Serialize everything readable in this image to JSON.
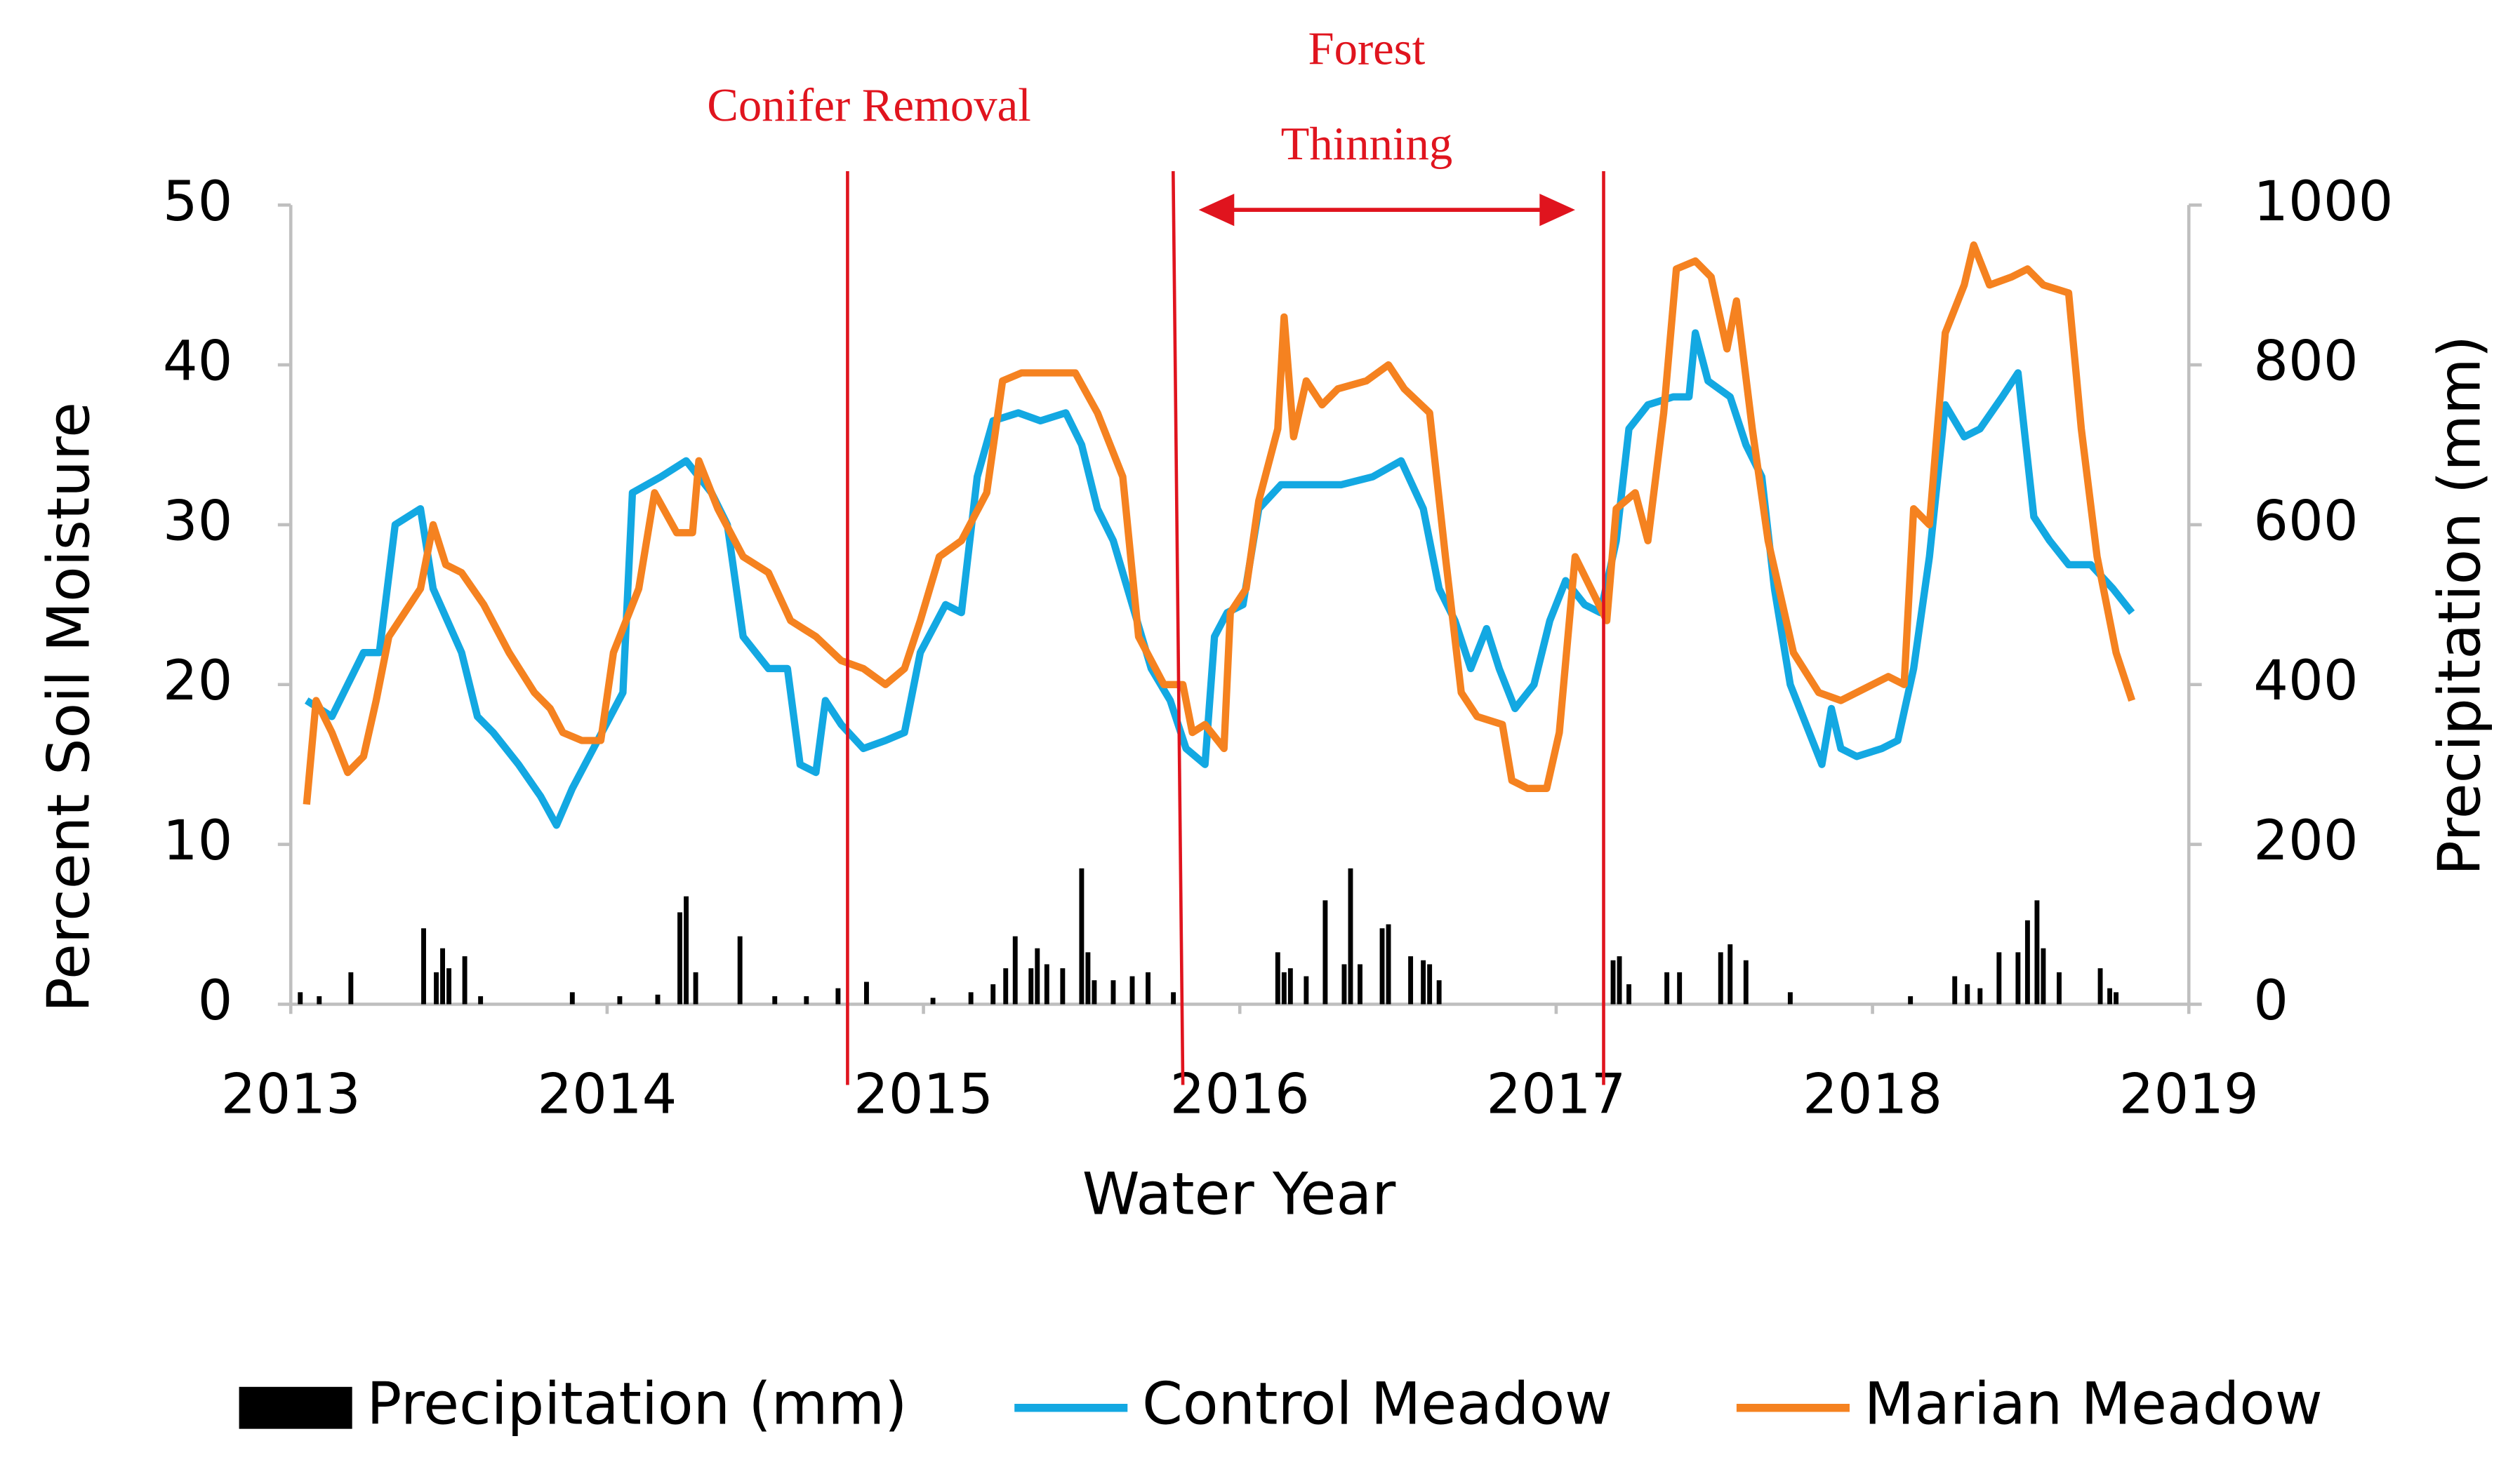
{
  "chart_data": {
    "type": "line",
    "x_label": "Water Year",
    "y_label": "Percent Soil Moisture",
    "y2_label": "Precipitation (mm)",
    "xlim": [
      2013,
      2019
    ],
    "xticks": [
      2013,
      2014,
      2015,
      2016,
      2017,
      2018,
      2019
    ],
    "ylim": [
      0,
      50
    ],
    "yticks": [
      0,
      10,
      20,
      30,
      40,
      50
    ],
    "y2lim": [
      0,
      1000
    ],
    "y2ticks": [
      0,
      200,
      400,
      600,
      800,
      1000
    ],
    "legend": "bottom",
    "annotations": [
      {
        "text": "Conifer Removal"
      },
      {
        "lines": [
          "Forest",
          "Thinning"
        ]
      }
    ],
    "vlines": [
      2014.76,
      2015.82,
      2017.15
    ],
    "arrow": [
      2015.87,
      2017.06
    ],
    "series": [
      {
        "name": "Precipitation (mm)",
        "type": "bar",
        "axis": "y2",
        "color": "#000000",
        "x": [
          2013.03,
          2013.09,
          2013.19,
          2013.42,
          2013.46,
          2013.48,
          2013.5,
          2013.55,
          2013.6,
          2013.89,
          2014.04,
          2014.16,
          2014.23,
          2014.25,
          2014.28,
          2014.42,
          2014.53,
          2014.63,
          2014.73,
          2014.82,
          2015.03,
          2015.15,
          2015.22,
          2015.26,
          2015.29,
          2015.34,
          2015.36,
          2015.39,
          2015.44,
          2015.5,
          2015.52,
          2015.54,
          2015.6,
          2015.66,
          2015.71,
          2015.79,
          2016.12,
          2016.14,
          2016.16,
          2016.21,
          2016.27,
          2016.33,
          2016.35,
          2016.38,
          2016.45,
          2016.47,
          2016.54,
          2016.58,
          2016.6,
          2016.63,
          2017.18,
          2017.2,
          2017.23,
          2017.35,
          2017.39,
          2017.52,
          2017.55,
          2017.6,
          2017.74,
          2018.12,
          2018.26,
          2018.3,
          2018.34,
          2018.4,
          2018.46,
          2018.49,
          2018.52,
          2018.54,
          2018.59,
          2018.72,
          2018.75,
          2018.77
        ],
        "values": [
          15,
          10,
          40,
          95,
          40,
          70,
          45,
          60,
          10,
          15,
          10,
          12,
          115,
          135,
          40,
          85,
          10,
          10,
          20,
          28,
          8,
          15,
          25,
          45,
          85,
          45,
          70,
          50,
          45,
          170,
          65,
          30,
          30,
          35,
          40,
          15,
          65,
          40,
          45,
          35,
          130,
          50,
          170,
          50,
          95,
          100,
          60,
          55,
          50,
          30,
          55,
          60,
          25,
          40,
          40,
          65,
          75,
          55,
          15,
          10,
          35,
          25,
          20,
          65,
          65,
          105,
          130,
          70,
          40,
          45,
          20,
          15
        ]
      },
      {
        "name": "Control Meadow",
        "color": "#13a8e2",
        "x": [
          2013.05,
          2013.13,
          2013.18,
          2013.23,
          2013.28,
          2013.33,
          2013.41,
          2013.45,
          2013.54,
          2013.59,
          2013.64,
          2013.72,
          2013.79,
          2013.84,
          2013.89,
          2013.97,
          2014.05,
          2014.08,
          2014.17,
          2014.25,
          2014.33,
          2014.38,
          2014.43,
          2014.51,
          2014.57,
          2014.61,
          2014.66,
          2014.69,
          2014.74,
          2014.81,
          2014.88,
          2014.94,
          2014.99,
          2015.07,
          2015.12,
          2015.17,
          2015.22,
          2015.3,
          2015.37,
          2015.45,
          2015.5,
          2015.55,
          2015.6,
          2015.66,
          2015.72,
          2015.78,
          2015.83,
          2015.89,
          2015.92,
          2015.96,
          2016.01,
          2016.06,
          2016.13,
          2016.22,
          2016.32,
          2016.42,
          2016.51,
          2016.58,
          2016.63,
          2016.68,
          2016.73,
          2016.78,
          2016.82,
          2016.87,
          2016.93,
          2016.98,
          2017.03,
          2017.09,
          2017.14,
          2017.19,
          2017.23,
          2017.29,
          2017.37,
          2017.42,
          2017.44,
          2017.48,
          2017.55,
          2017.6,
          2017.65,
          2017.69,
          2017.74,
          2017.8,
          2017.84,
          2017.87,
          2017.9,
          2017.95,
          2018.03,
          2018.08,
          2018.13,
          2018.18,
          2018.23,
          2018.29,
          2018.34,
          2018.41,
          2018.46,
          2018.51,
          2018.56,
          2018.62,
          2018.69,
          2018.76,
          2018.82
        ],
        "values": [
          19,
          18,
          20,
          22,
          22,
          30,
          31,
          26,
          22,
          18,
          17,
          15,
          13,
          11.2,
          13.5,
          16.5,
          19.5,
          32,
          33,
          34,
          32,
          30,
          23,
          21,
          21,
          15,
          14.5,
          19,
          17.5,
          16,
          16.5,
          17,
          22,
          25,
          24.5,
          33,
          36.5,
          37,
          36.5,
          37,
          35,
          31,
          29,
          25,
          21,
          19,
          16,
          15,
          23,
          24.5,
          25,
          31,
          32.5,
          32.5,
          32.5,
          33,
          34,
          31,
          26,
          24,
          21,
          23.5,
          21,
          18.5,
          20,
          24,
          26.5,
          25,
          24.5,
          29,
          36,
          37.5,
          38,
          38,
          42,
          39,
          38,
          35,
          33,
          26,
          20,
          17,
          15,
          18.5,
          16,
          15.5,
          16,
          16.5,
          21,
          28,
          37.5,
          35.5,
          36,
          38,
          39.5,
          30.5,
          29,
          27.5,
          27.5,
          26,
          24.5
        ]
      },
      {
        "name": "Marian Meadow",
        "color": "#f58220",
        "x": [
          2013.05,
          2013.08,
          2013.13,
          2013.18,
          2013.23,
          2013.27,
          2013.31,
          2013.36,
          2013.41,
          2013.45,
          2013.49,
          2013.54,
          2013.61,
          2013.69,
          2013.77,
          2013.82,
          2013.86,
          2013.92,
          2013.98,
          2014.02,
          2014.1,
          2014.15,
          2014.22,
          2014.27,
          2014.29,
          2014.35,
          2014.43,
          2014.51,
          2014.58,
          2014.66,
          2014.74,
          2014.81,
          2014.88,
          2014.94,
          2014.99,
          2015.05,
          2015.12,
          2015.2,
          2015.25,
          2015.31,
          2015.4,
          2015.48,
          2015.55,
          2015.63,
          2015.68,
          2015.76,
          2015.82,
          2015.85,
          2015.89,
          2015.95,
          2015.97,
          2016.02,
          2016.06,
          2016.12,
          2016.14,
          2016.17,
          2016.21,
          2016.26,
          2016.31,
          2016.4,
          2016.47,
          2016.52,
          2016.6,
          2016.65,
          2016.7,
          2016.75,
          2016.83,
          2016.86,
          2016.91,
          2016.97,
          2017.01,
          2017.06,
          2017.11,
          2017.16,
          2017.19,
          2017.25,
          2017.29,
          2017.34,
          2017.38,
          2017.44,
          2017.49,
          2017.54,
          2017.57,
          2017.62,
          2017.67,
          2017.75,
          2017.83,
          2017.9,
          2018.0,
          2018.05,
          2018.1,
          2018.13,
          2018.18,
          2018.23,
          2018.29,
          2018.32,
          2018.37,
          2018.44,
          2018.49,
          2018.54,
          2018.62,
          2018.66,
          2018.71,
          2018.77,
          2018.82
        ],
        "values": [
          12.5,
          19,
          17,
          14.5,
          15.5,
          19,
          23,
          24.5,
          26,
          30,
          27.5,
          27,
          25,
          22,
          19.5,
          18.5,
          17,
          16.5,
          16.5,
          22,
          26,
          32,
          29.5,
          29.5,
          34,
          31,
          28,
          27,
          24,
          23,
          21.5,
          21,
          20,
          21,
          24,
          28,
          29,
          32,
          39,
          39.5,
          39.5,
          39.5,
          37,
          33,
          23,
          20,
          20,
          17,
          17.5,
          16,
          24.5,
          26,
          31.5,
          36,
          43,
          35.5,
          39,
          37.5,
          38.5,
          39,
          40,
          38.5,
          37,
          28,
          19.5,
          18,
          17.5,
          14,
          13.5,
          13.5,
          17,
          28,
          26,
          24,
          31,
          32,
          29,
          37,
          46,
          46.5,
          45.5,
          41,
          44,
          36,
          29,
          22,
          19.5,
          19,
          20,
          20.5,
          20,
          31,
          30,
          42,
          45,
          47.5,
          45,
          45.5,
          46,
          45,
          44.5,
          36,
          28,
          22,
          19
        ]
      }
    ]
  }
}
